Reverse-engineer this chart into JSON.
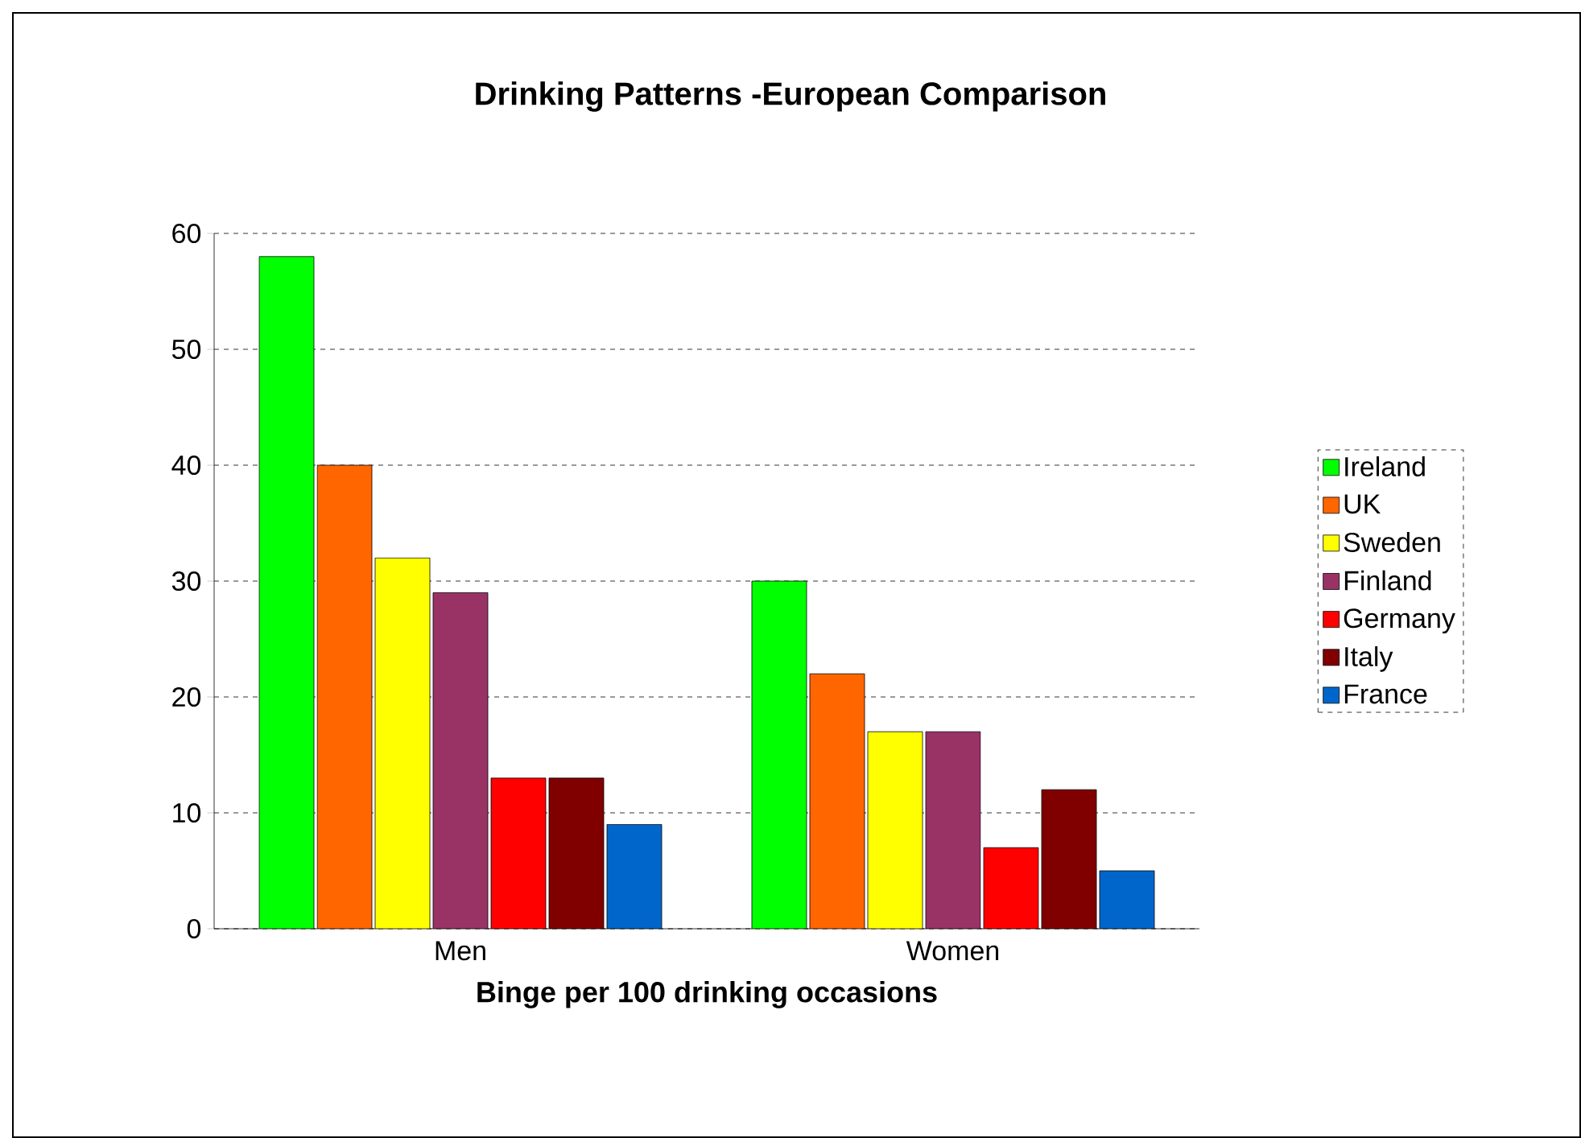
{
  "chart_data": {
    "type": "bar",
    "title": "Drinking Patterns -European Comparison",
    "xlabel": "Binge per 100 drinking occasions",
    "categories": [
      "Men",
      "Women"
    ],
    "series": [
      {
        "name": "Ireland",
        "color": "#00ff00",
        "values": [
          58,
          30
        ]
      },
      {
        "name": "UK",
        "color": "#ff6600",
        "values": [
          40,
          22
        ]
      },
      {
        "name": "Sweden",
        "color": "#ffff00",
        "values": [
          32,
          17
        ]
      },
      {
        "name": "Finland",
        "color": "#993366",
        "values": [
          29,
          17
        ]
      },
      {
        "name": "Germany",
        "color": "#ff0000",
        "values": [
          13,
          7
        ]
      },
      {
        "name": "Italy",
        "color": "#800000",
        "values": [
          13,
          12
        ]
      },
      {
        "name": "France",
        "color": "#0066cc",
        "values": [
          9,
          5
        ]
      }
    ],
    "ylim": [
      0,
      60
    ],
    "yticks": [
      0,
      10,
      20,
      30,
      40,
      50,
      60
    ],
    "grid": "y",
    "legend": "right"
  }
}
